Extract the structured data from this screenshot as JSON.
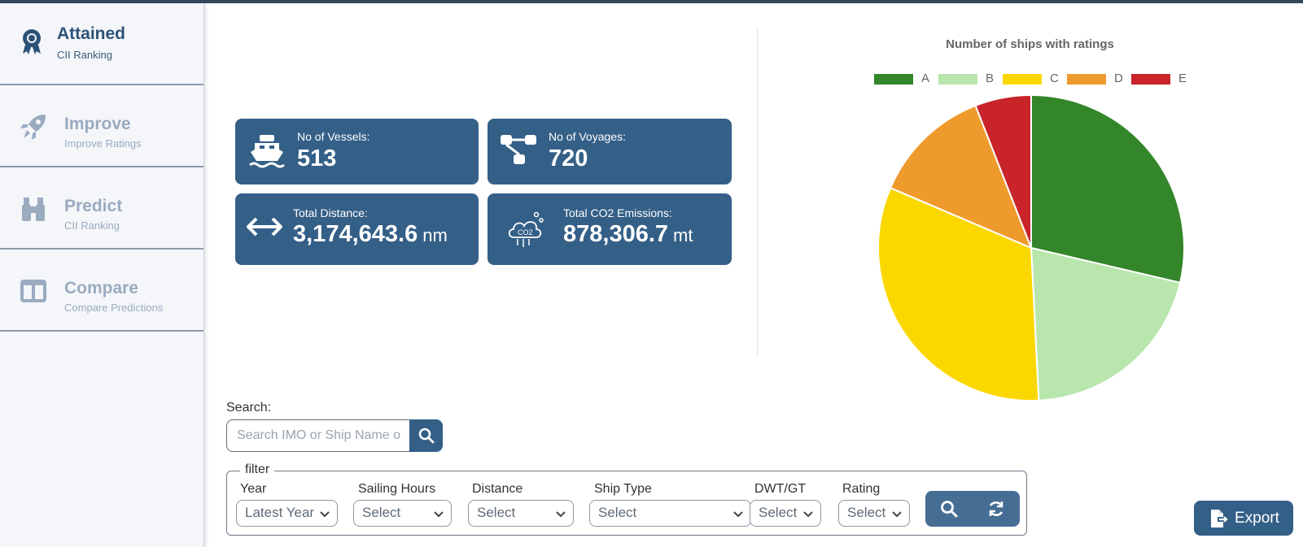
{
  "sidebar": {
    "items": [
      {
        "title": "Attained",
        "subtitle": "CII Ranking",
        "icon": "award-ribbon-icon",
        "active": true
      },
      {
        "title": "Improve",
        "subtitle": "Improve Ratings",
        "icon": "rocket-icon",
        "active": false
      },
      {
        "title": "Predict",
        "subtitle": "CII Ranking",
        "icon": "binoculars-icon",
        "active": false
      },
      {
        "title": "Compare",
        "subtitle": "Compare Predictions",
        "icon": "columns-icon",
        "active": false
      }
    ]
  },
  "kpis": {
    "vessels": {
      "label": "No of Vessels:",
      "value": "513",
      "icon": "ship-icon"
    },
    "voyages": {
      "label": "No of Voyages:",
      "value": "720",
      "icon": "route-nodes-icon"
    },
    "distance": {
      "label": "Total Distance:",
      "value": "3,174,643.6",
      "unit": "nm",
      "icon": "double-arrow-icon"
    },
    "emissions": {
      "label": "Total CO2 Emissions:",
      "value": "878,306.7",
      "unit": "mt",
      "icon": "co2-cloud-icon"
    }
  },
  "chart_data": {
    "type": "pie",
    "title": "Number of ships with ratings",
    "legend_position": "top",
    "categories": [
      "A",
      "B",
      "C",
      "D",
      "E"
    ],
    "values": [
      145,
      104,
      163,
      64,
      30
    ],
    "colors": [
      "#33862a",
      "#b9e6ad",
      "#fbd700",
      "#ef9a2c",
      "#c8242a"
    ]
  },
  "search": {
    "label": "Search:",
    "placeholder": "Search IMO or Ship Name o",
    "button_icon": "search-icon"
  },
  "filter": {
    "legend": "filter",
    "fields": [
      {
        "label": "Year",
        "value": "Latest Year"
      },
      {
        "label": "Sailing Hours",
        "value": "Select"
      },
      {
        "label": "Distance",
        "value": "Select"
      },
      {
        "label": "Ship Type",
        "value": "Select"
      },
      {
        "label": "DWT/GT",
        "value": "Select"
      },
      {
        "label": "Rating",
        "value": "Select"
      }
    ],
    "search_icon": "search-icon",
    "reset_icon": "refresh-icon"
  },
  "export": {
    "label": "Export",
    "icon": "file-export-icon"
  },
  "colors": {
    "primary": "#345f87",
    "sidebar_bg": "#f4f6f9",
    "active_text": "#2d5277",
    "inactive_text": "#9aabc0"
  }
}
